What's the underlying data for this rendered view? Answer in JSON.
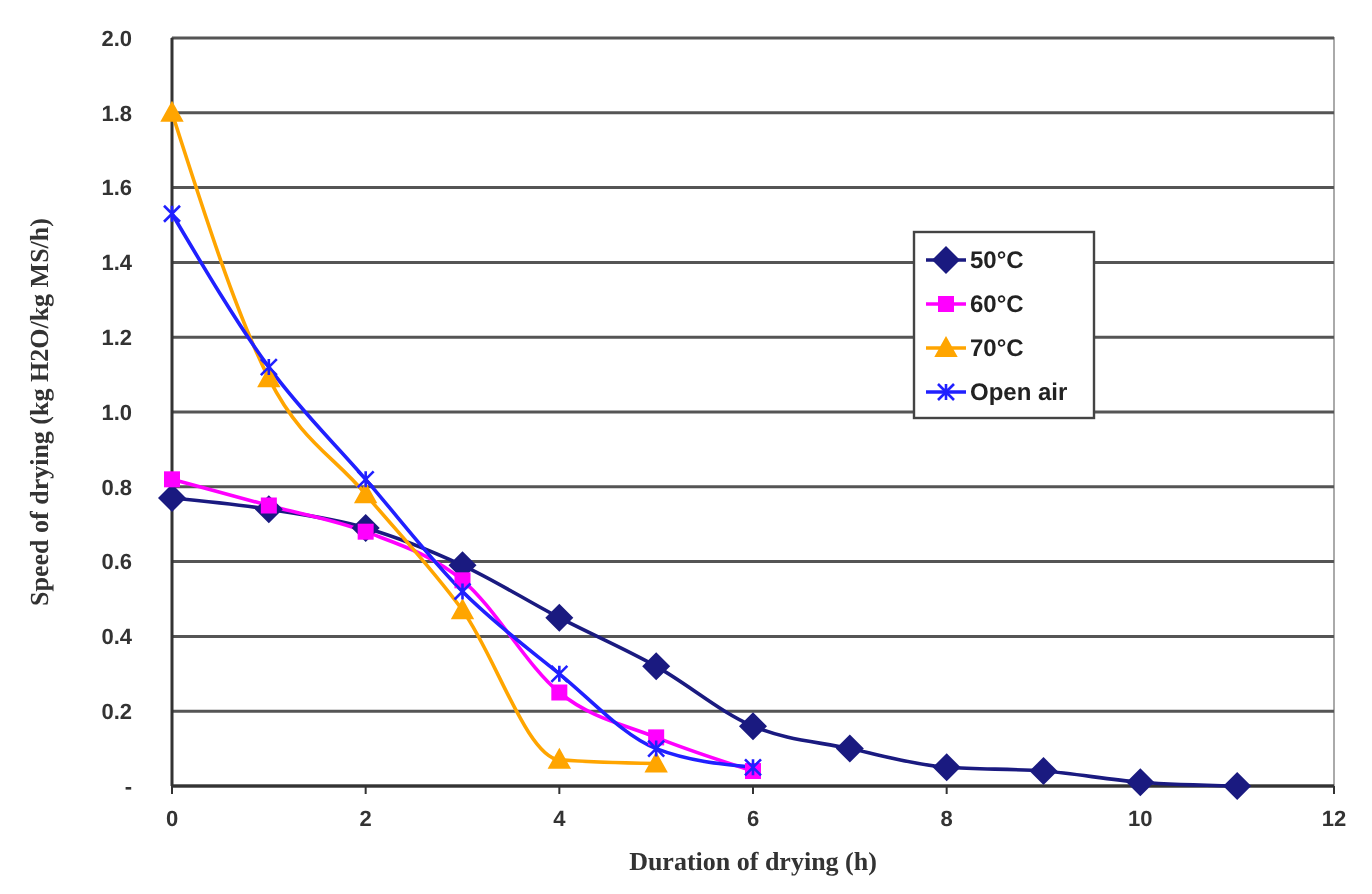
{
  "chart_data": {
    "type": "line",
    "xlabel": "Duration of drying (h)",
    "ylabel": "Speed of drying (kg H2O/kg MS/h)",
    "xlim": [
      0,
      12
    ],
    "xticks": [
      0,
      2,
      4,
      6,
      8,
      10,
      12
    ],
    "ylim": [
      0,
      2.0
    ],
    "yticks": [
      {
        "value": 0,
        "label": "-"
      },
      {
        "value": 0.2,
        "label": "0.2"
      },
      {
        "value": 0.4,
        "label": "0.4"
      },
      {
        "value": 0.6,
        "label": "0.6"
      },
      {
        "value": 0.8,
        "label": "0.8"
      },
      {
        "value": 1.0,
        "label": "1.0"
      },
      {
        "value": 1.2,
        "label": "1.2"
      },
      {
        "value": 1.4,
        "label": "1.4"
      },
      {
        "value": 1.6,
        "label": "1.6"
      },
      {
        "value": 1.8,
        "label": "1.8"
      },
      {
        "value": 2.0,
        "label": "2.0"
      }
    ],
    "grid": "y",
    "legend": "right",
    "series": [
      {
        "name": "50°C",
        "color": "#1a1a80",
        "marker": "diamond",
        "x": [
          0,
          1,
          2,
          3,
          4,
          5,
          6,
          7,
          8,
          9,
          10,
          11
        ],
        "values": [
          0.77,
          0.74,
          0.69,
          0.59,
          0.45,
          0.32,
          0.16,
          0.1,
          0.05,
          0.04,
          0.01,
          0.0
        ]
      },
      {
        "name": "60°C",
        "color": "#ff00ff",
        "marker": "square",
        "x": [
          0,
          1,
          2,
          3,
          4,
          5,
          6
        ],
        "values": [
          0.82,
          0.75,
          0.68,
          0.55,
          0.25,
          0.13,
          0.04
        ]
      },
      {
        "name": "70°C",
        "color": "#ffa500",
        "marker": "triangle",
        "x": [
          0,
          1,
          2,
          3,
          4,
          5
        ],
        "values": [
          1.8,
          1.09,
          0.78,
          0.47,
          0.07,
          0.06
        ]
      },
      {
        "name": "Open air",
        "color": "#2020ff",
        "marker": "cross",
        "x": [
          0,
          1,
          2,
          3,
          4,
          5,
          6
        ],
        "values": [
          1.53,
          1.12,
          0.82,
          0.52,
          0.3,
          0.1,
          0.05
        ]
      }
    ]
  }
}
